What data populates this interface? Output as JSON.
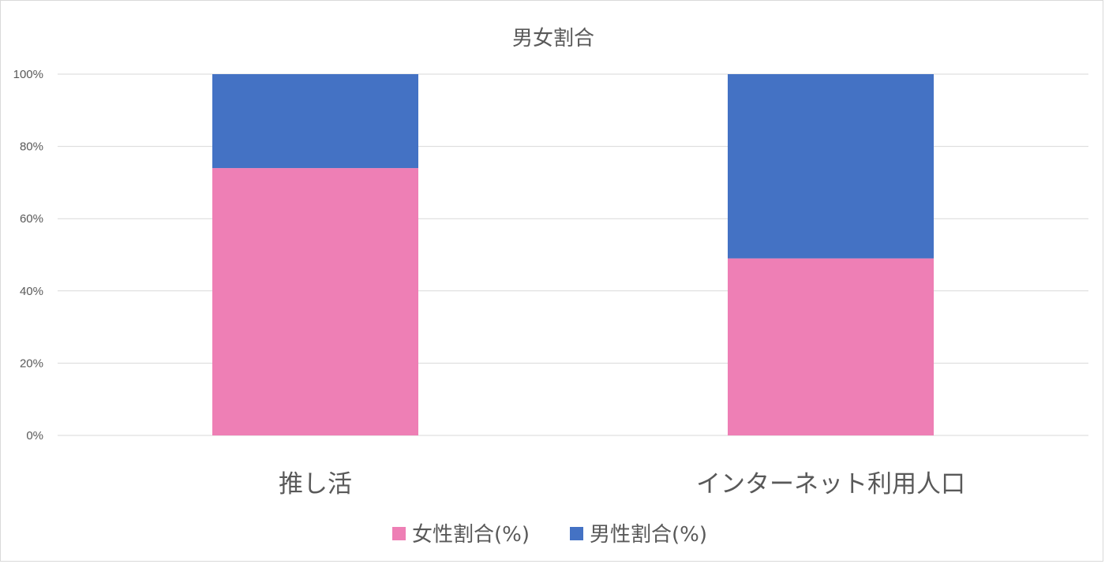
{
  "chart_data": {
    "type": "bar",
    "stacked": "percent",
    "title": "男女割合",
    "categories": [
      "推し活",
      "インターネット利用人口"
    ],
    "series": [
      {
        "name": "女性割合(%)",
        "values": [
          74,
          49
        ],
        "color": "#ee7fb5"
      },
      {
        "name": "男性割合(%)",
        "values": [
          26,
          51
        ],
        "color": "#4472c4"
      }
    ],
    "y_ticks": [
      "0%",
      "20%",
      "40%",
      "60%",
      "80%",
      "100%"
    ],
    "ylim": [
      0,
      100
    ],
    "xlabel": "",
    "ylabel": "",
    "grid": true,
    "legend_position": "bottom"
  }
}
